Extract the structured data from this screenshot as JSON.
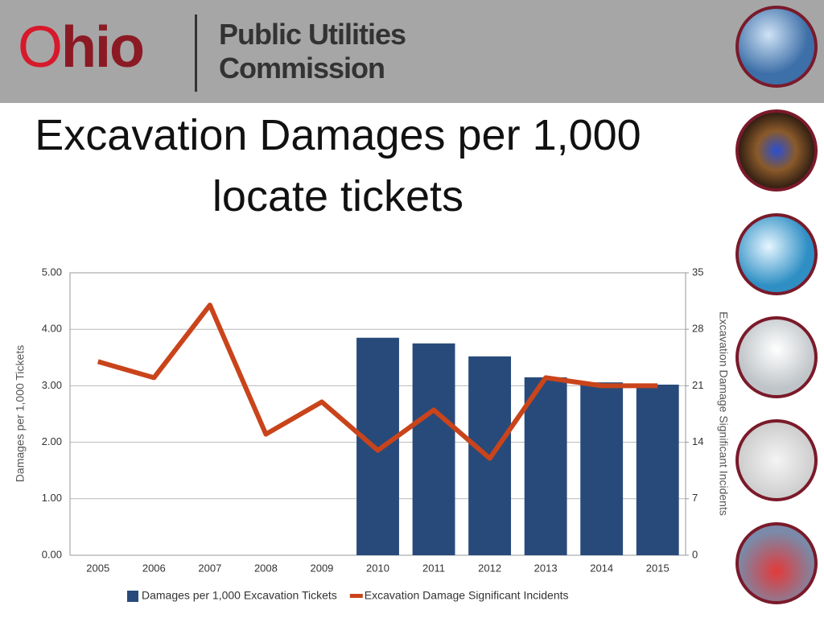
{
  "header": {
    "logo": "Ohio",
    "org_line1": "Public Utilities",
    "org_line2": "Commission"
  },
  "title": "Excavation Damages per 1,000 locate tickets",
  "chart_data": {
    "type": "bar",
    "y_label": "Damages per 1,000 Tickets",
    "y2_label": "Excavation Damage Significant Incidents",
    "categories": [
      "2005",
      "2006",
      "2007",
      "2008",
      "2009",
      "2010",
      "2011",
      "2012",
      "2013",
      "2014",
      "2015"
    ],
    "series": [
      {
        "name": "Damages per 1,000 Excavation Tickets",
        "type": "bar",
        "color": "#284a7a",
        "values": [
          null,
          null,
          null,
          null,
          null,
          3.85,
          3.75,
          3.52,
          3.15,
          3.06,
          3.02
        ]
      },
      {
        "name": "Excavation Damage Significant Incidents",
        "type": "line",
        "axis": "y2",
        "color": "#c9441b",
        "values": [
          24,
          22,
          31,
          15,
          19,
          13,
          18,
          12,
          22,
          21,
          21
        ]
      }
    ],
    "ylim": [
      0,
      5
    ],
    "yticks": [
      {
        "value": 0,
        "label": "0.00"
      },
      {
        "value": 1,
        "label": "1.00"
      },
      {
        "value": 2,
        "label": "2.00"
      },
      {
        "value": 3,
        "label": "3.00"
      },
      {
        "value": 4,
        "label": "4.00"
      },
      {
        "value": 5,
        "label": "5.00"
      }
    ],
    "y2lim": [
      0,
      35
    ],
    "y2ticks": [
      0,
      7,
      14,
      21,
      28,
      35
    ],
    "grid": true,
    "legend": "bottom"
  }
}
